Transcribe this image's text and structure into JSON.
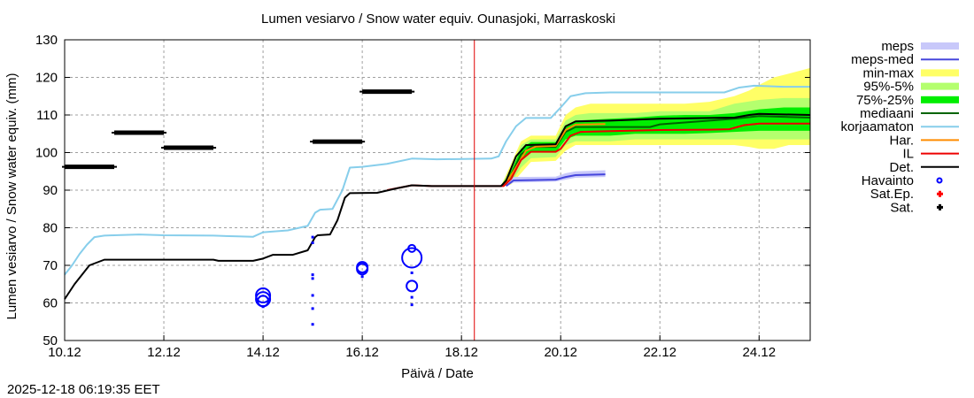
{
  "chart_data": {
    "type": "line",
    "title": "Lumen vesiarvo / Snow water equiv.  Ounasjoki, Marraskoski",
    "xlabel": "Päivä / Date",
    "ylabel": "Lumen vesiarvo / Snow water equiv. (mm)",
    "xlim": [
      10.0,
      25.03
    ],
    "ylim": [
      50,
      130
    ],
    "x_unit": "day of December 2025",
    "grid": true,
    "legend_position": "right",
    "timestamp": "2025-12-18 06:19:35 EET",
    "now_marker_x": 18.26,
    "x_ticks": [
      {
        "value": 10,
        "label": "10.12"
      },
      {
        "value": 12,
        "label": "12.12"
      },
      {
        "value": 14,
        "label": "14.12"
      },
      {
        "value": 16,
        "label": "16.12"
      },
      {
        "value": 18,
        "label": "18.12"
      },
      {
        "value": 20,
        "label": "20.12"
      },
      {
        "value": 22,
        "label": "22.12"
      },
      {
        "value": 24,
        "label": "24.12"
      }
    ],
    "y_ticks": [
      {
        "value": 50,
        "label": "50"
      },
      {
        "value": 60,
        "label": "60"
      },
      {
        "value": 70,
        "label": "70"
      },
      {
        "value": 80,
        "label": "80"
      },
      {
        "value": 90,
        "label": "90"
      },
      {
        "value": 100,
        "label": "100"
      },
      {
        "value": 110,
        "label": "110"
      },
      {
        "value": 120,
        "label": "120"
      },
      {
        "value": 130,
        "label": "130"
      }
    ],
    "legend": [
      {
        "key": "meps",
        "label": "meps",
        "kind": "band",
        "color": "#c8c8fa"
      },
      {
        "key": "meps_med",
        "label": "meps-med",
        "kind": "line",
        "color": "#4646dc"
      },
      {
        "key": "minmax",
        "label": "min-max",
        "kind": "band",
        "color": "#ffff66"
      },
      {
        "key": "p95_5",
        "label": "95%-5%",
        "kind": "band",
        "color": "#b4ff6e"
      },
      {
        "key": "p75_25",
        "label": "75%-25%",
        "kind": "band",
        "color": "#00ee00"
      },
      {
        "key": "mediaani",
        "label": "mediaani",
        "kind": "line",
        "color": "#006400"
      },
      {
        "key": "korjaamaton",
        "label": "korjaamaton",
        "kind": "line",
        "color": "#87ceeb"
      },
      {
        "key": "har",
        "label": "Har.",
        "kind": "line",
        "color": "#ff8c00"
      },
      {
        "key": "il",
        "label": "IL",
        "kind": "line",
        "color": "#ee0000"
      },
      {
        "key": "det",
        "label": "Det.",
        "kind": "line",
        "color": "#000000"
      },
      {
        "key": "havainto",
        "label": "Havainto",
        "kind": "circle",
        "color": "#0000ff"
      },
      {
        "key": "sat_ep",
        "label": "Sat.Ep.",
        "kind": "cross",
        "color": "#ff0000"
      },
      {
        "key": "sat",
        "label": "Sat.",
        "kind": "cross",
        "color": "#000000"
      }
    ],
    "bands": {
      "minmax": {
        "x": [
          18.8,
          19.0,
          19.2,
          19.4,
          19.9,
          20.1,
          20.3,
          20.6,
          21.0,
          21.5,
          22.0,
          22.5,
          23.0,
          23.5,
          23.8,
          24.0,
          24.3,
          24.6,
          25.03
        ],
        "lo": [
          91.1,
          91.5,
          94.5,
          97.5,
          97.8,
          100.5,
          102.0,
          102.0,
          102.0,
          102.0,
          102.0,
          102.0,
          102.0,
          102.0,
          101.5,
          101.0,
          101.0,
          102.0,
          102.0
        ],
        "hi": [
          91.2,
          97.0,
          103.0,
          104.5,
          104.5,
          110.0,
          112.0,
          113.0,
          113.0,
          113.0,
          113.0,
          113.0,
          113.5,
          115.0,
          116.5,
          118.0,
          120.0,
          121.0,
          122.5
        ]
      },
      "p95_5": {
        "x": [
          18.8,
          19.0,
          19.2,
          19.4,
          19.9,
          20.1,
          20.3,
          20.6,
          21.0,
          21.5,
          22.0,
          22.5,
          23.0,
          23.5,
          24.0,
          24.5,
          25.03
        ],
        "lo": [
          91.1,
          92.0,
          96.0,
          98.5,
          98.8,
          102.0,
          103.0,
          103.0,
          103.0,
          103.5,
          103.5,
          103.5,
          103.5,
          103.5,
          103.5,
          103.5,
          103.5
        ],
        "hi": [
          91.2,
          96.0,
          102.0,
          103.5,
          103.5,
          108.5,
          110.0,
          110.5,
          110.5,
          110.5,
          111.0,
          111.0,
          111.0,
          113.0,
          114.0,
          114.5,
          114.5
        ]
      },
      "p75_25": {
        "x": [
          18.8,
          19.0,
          19.2,
          19.4,
          19.9,
          20.1,
          20.3,
          20.6,
          21.0,
          21.5,
          22.0,
          22.5,
          23.0,
          23.5,
          24.0,
          24.5,
          25.03
        ],
        "lo": [
          91.1,
          93.0,
          98.0,
          100.0,
          100.0,
          103.5,
          104.5,
          104.5,
          104.5,
          105.0,
          105.0,
          105.0,
          105.2,
          105.5,
          105.8,
          105.8,
          105.8
        ],
        "hi": [
          91.2,
          95.0,
          101.0,
          102.8,
          102.8,
          107.0,
          108.5,
          108.7,
          109.0,
          109.3,
          109.8,
          110.0,
          110.0,
          110.5,
          111.5,
          112.0,
          112.0
        ]
      },
      "meps": {
        "x": [
          18.9,
          19.05,
          19.9,
          20.1,
          20.3,
          20.9
        ],
        "lo": [
          91.1,
          92.0,
          92.3,
          92.8,
          93.3,
          93.5
        ],
        "hi": [
          91.3,
          93.5,
          93.6,
          94.5,
          95.0,
          95.3
        ]
      }
    },
    "series": [
      {
        "key": "korjaamaton",
        "name": "korjaamaton",
        "x": [
          10.0,
          10.15,
          10.3,
          10.45,
          10.6,
          10.8,
          11.0,
          11.5,
          12.0,
          13.0,
          13.5,
          13.8,
          14.0,
          14.5,
          14.9,
          15.05,
          15.15,
          15.4,
          15.6,
          15.75,
          16.0,
          16.5,
          17.0,
          17.5,
          18.6,
          18.75,
          18.9,
          19.1,
          19.3,
          19.8,
          20.0,
          20.2,
          20.5,
          21.0,
          22.0,
          23.3,
          23.6,
          23.9,
          24.5,
          25.03
        ],
        "y": [
          67.5,
          70.0,
          73.0,
          75.5,
          77.5,
          77.9,
          78.0,
          78.2,
          78.0,
          77.9,
          77.7,
          77.6,
          78.8,
          79.3,
          80.5,
          84.0,
          84.8,
          85.0,
          90.0,
          96.0,
          96.2,
          97.0,
          98.4,
          98.2,
          98.4,
          99.0,
          103.0,
          107.0,
          109.2,
          109.2,
          112.0,
          115.0,
          115.8,
          116.0,
          116.0,
          116.0,
          117.3,
          117.8,
          117.5,
          117.5
        ]
      },
      {
        "key": "mediaani",
        "name": "mediaani",
        "x": [
          18.8,
          19.0,
          19.2,
          19.4,
          19.9,
          20.1,
          20.3,
          21.0,
          21.8,
          22.0,
          23.0,
          23.5,
          24.0,
          25.03
        ],
        "y": [
          91.1,
          94.0,
          99.5,
          101.5,
          101.5,
          105.5,
          106.8,
          106.8,
          106.8,
          107.5,
          108.5,
          109.0,
          109.7,
          109.3
        ]
      },
      {
        "key": "meps_med",
        "name": "meps-med",
        "x": [
          18.9,
          19.05,
          19.9,
          20.1,
          20.3,
          20.9
        ],
        "y": [
          91.1,
          92.6,
          92.8,
          93.5,
          94.0,
          94.2
        ]
      },
      {
        "key": "har",
        "name": "Har.",
        "x": [
          18.85,
          19.05,
          19.3,
          19.5,
          19.9,
          20.1,
          20.3,
          20.9
        ],
        "y": [
          91.1,
          95.0,
          100.5,
          101.6,
          101.8,
          106.0,
          107.4,
          107.6
        ]
      },
      {
        "key": "il",
        "name": "IL",
        "x": [
          16.5,
          17.0,
          17.4,
          18.85,
          19.0,
          19.2,
          19.4,
          19.9,
          20.0,
          20.2,
          20.4,
          21.0,
          22.0,
          23.0,
          23.4,
          23.7,
          24.0,
          25.03
        ],
        "y": [
          90.0,
          91.3,
          91.1,
          91.1,
          93.0,
          98.0,
          100.2,
          100.2,
          101.0,
          104.5,
          105.5,
          105.7,
          106.0,
          106.1,
          106.2,
          107.3,
          107.7,
          107.7
        ]
      },
      {
        "key": "det",
        "name": "Det.",
        "x": [
          10.0,
          10.2,
          10.5,
          10.8,
          13.0,
          13.1,
          13.8,
          14.0,
          14.2,
          14.6,
          14.9,
          15.05,
          15.1,
          15.35,
          15.5,
          15.65,
          15.75,
          16.3,
          16.7,
          17.0,
          17.4,
          18.8,
          18.9,
          19.1,
          19.3,
          19.9,
          20.1,
          20.3,
          21.0,
          22.0,
          23.0,
          23.5,
          23.8,
          24.0,
          25.03
        ],
        "y": [
          61.0,
          65.0,
          70.0,
          71.5,
          71.5,
          71.2,
          71.2,
          71.8,
          72.8,
          72.8,
          74.0,
          77.5,
          78.0,
          78.2,
          82.0,
          88.0,
          89.2,
          89.3,
          90.5,
          91.3,
          91.1,
          91.1,
          92.5,
          99.0,
          102.0,
          102.2,
          107.0,
          108.3,
          108.5,
          109.0,
          109.2,
          109.3,
          110.0,
          110.3,
          110.0
        ]
      }
    ],
    "sat": [
      {
        "x_start": 10.0,
        "x_end": 11.0,
        "y": 96.2
      },
      {
        "x_start": 11.0,
        "x_end": 12.0,
        "y": 105.3
      },
      {
        "x_start": 12.0,
        "x_end": 13.0,
        "y": 101.3
      },
      {
        "x_start": 15.0,
        "x_end": 16.0,
        "y": 102.9
      },
      {
        "x_start": 16.0,
        "x_end": 17.0,
        "y": 116.2
      }
    ],
    "havainto": [
      {
        "x": 14.0,
        "y": 62.0,
        "size": "large"
      },
      {
        "x": 14.0,
        "y": 61.0,
        "size": "large"
      },
      {
        "x": 14.0,
        "y": 60.5,
        "size": "medium"
      },
      {
        "x": 14.0,
        "y": 59.0,
        "size": "dot"
      },
      {
        "x": 15.0,
        "y": 77.5,
        "size": "dot"
      },
      {
        "x": 15.0,
        "y": 76.0,
        "size": "dot"
      },
      {
        "x": 15.0,
        "y": 67.5,
        "size": "dot"
      },
      {
        "x": 15.0,
        "y": 66.5,
        "size": "dot"
      },
      {
        "x": 15.0,
        "y": 62.0,
        "size": "dot"
      },
      {
        "x": 15.0,
        "y": 58.5,
        "size": "dot"
      },
      {
        "x": 15.0,
        "y": 54.3,
        "size": "dot"
      },
      {
        "x": 16.0,
        "y": 69.5,
        "size": "medium"
      },
      {
        "x": 16.0,
        "y": 69.0,
        "size": "medium"
      },
      {
        "x": 16.0,
        "y": 67.0,
        "size": "dot"
      },
      {
        "x": 17.0,
        "y": 74.5,
        "size": "small"
      },
      {
        "x": 17.0,
        "y": 72.0,
        "size": "xlarge"
      },
      {
        "x": 17.0,
        "y": 68.0,
        "size": "dot"
      },
      {
        "x": 17.0,
        "y": 64.5,
        "size": "medium"
      },
      {
        "x": 17.0,
        "y": 61.5,
        "size": "dot"
      },
      {
        "x": 17.0,
        "y": 59.5,
        "size": "dot"
      }
    ]
  }
}
